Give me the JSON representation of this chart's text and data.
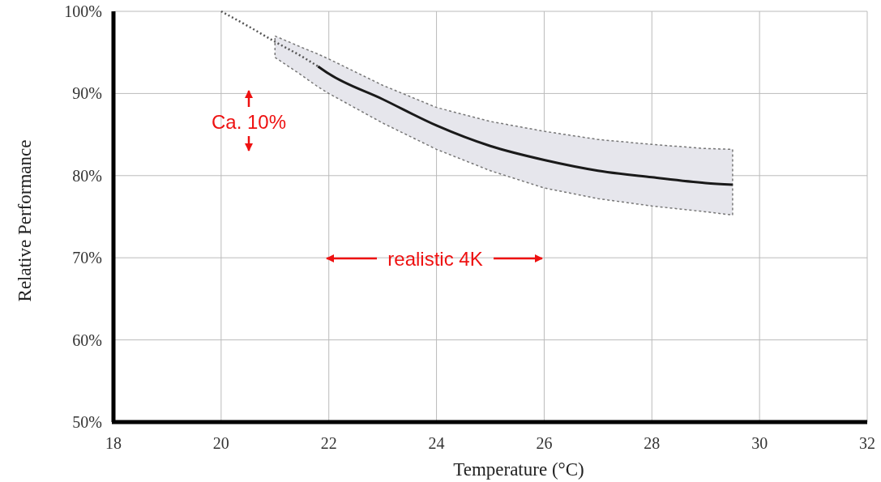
{
  "chart_data": {
    "type": "line",
    "xlabel": "Temperature (°C)",
    "ylabel": "Relative Performance",
    "xlim": [
      18,
      32
    ],
    "xticks": [
      18,
      20,
      22,
      24,
      26,
      28,
      30,
      32
    ],
    "ylim": [
      50,
      100
    ],
    "yticks": [
      {
        "value": 50,
        "label": "50%"
      },
      {
        "value": 60,
        "label": "60%"
      },
      {
        "value": 70,
        "label": "70%"
      },
      {
        "value": 80,
        "label": "80%"
      },
      {
        "value": 90,
        "label": "90%"
      },
      {
        "value": 100,
        "label": "100%"
      }
    ],
    "grid": true,
    "series": [
      {
        "color": "#555555",
        "line_style": "dotted",
        "x": [
          20,
          20.5,
          21,
          21.5,
          21.8
        ],
        "values": [
          100,
          98.2,
          96.3,
          94.5,
          93.3
        ]
      },
      {
        "color": "#1a1a1a",
        "line_style": "solid",
        "x": [
          21,
          21.5,
          21.8,
          22,
          23,
          24,
          25,
          26,
          27,
          28,
          29,
          29.5
        ],
        "values": [
          null,
          null,
          93.3,
          92.4,
          89.3,
          86.1,
          83.6,
          81.9,
          80.6,
          79.8,
          79.1,
          78.9
        ],
        "lower": [
          94.4,
          92.2,
          90.8,
          90,
          86.4,
          83.2,
          80.6,
          78.5,
          77.2,
          76.3,
          75.6,
          75.2
        ],
        "upper": [
          97,
          95.6,
          94.8,
          94.2,
          91,
          88.3,
          86.6,
          85.4,
          84.4,
          83.8,
          83.3,
          83.2
        ]
      }
    ],
    "annotations": [
      "Ca. 10%",
      "realistic 4K"
    ]
  }
}
